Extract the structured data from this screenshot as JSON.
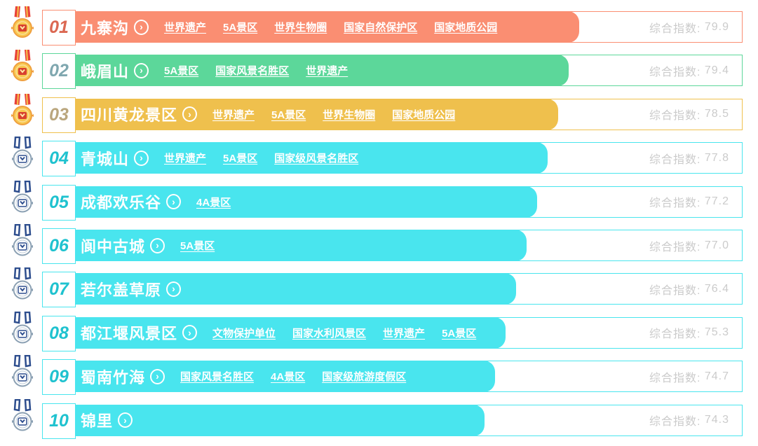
{
  "score_label": "综合指数:",
  "colors": {
    "background": "#ffffff",
    "score_text": "#cbcbcb",
    "themes": {
      "salmon": {
        "bar": "#FA8E72",
        "rank": "#DB6852"
      },
      "green": {
        "bar": "#5CD79A",
        "rank": "#7FA7AF"
      },
      "yellow": {
        "bar": "#EFC04D",
        "rank": "#BAA67D"
      },
      "cyan": {
        "bar": "#49E5EE",
        "rank": "#1FC2CF"
      }
    },
    "medal_gold": {
      "ribbon": "#E8433A",
      "ribbon_stripe": "#F6C44C",
      "circle": "#F8C74F",
      "ring": "#EFA040",
      "inner_ring": "#FBDF9B",
      "box": "#D8402F",
      "mark": "#FFE9A8"
    },
    "medal_outline": {
      "ribbon": "#2E4E8E",
      "circle": "#FFFFFF",
      "ring": "#8BA0B3",
      "inner_ring": "#C3CFD9",
      "box": "#FFFFFF",
      "box_stroke": "#2E4E8E",
      "mark": "#2E4E8E"
    }
  },
  "rows": [
    {
      "rank": "01",
      "name": "九寨沟",
      "tags": [
        "世界遗产",
        "5A景区",
        "世界生物圈",
        "国家自然保护区",
        "国家地质公园"
      ],
      "score": "79.9",
      "theme": "salmon",
      "medal": "gold"
    },
    {
      "rank": "02",
      "name": "峨眉山",
      "tags": [
        "5A景区",
        "国家风景名胜区",
        "世界遗产"
      ],
      "score": "79.4",
      "theme": "green",
      "medal": "gold"
    },
    {
      "rank": "03",
      "name": "四川黄龙景区",
      "tags": [
        "世界遗产",
        "5A景区",
        "世界生物圈",
        "国家地质公园"
      ],
      "score": "78.5",
      "theme": "yellow",
      "medal": "gold"
    },
    {
      "rank": "04",
      "name": "青城山",
      "tags": [
        "世界遗产",
        "5A景区",
        "国家级风景名胜区"
      ],
      "score": "77.8",
      "theme": "cyan",
      "medal": "outline"
    },
    {
      "rank": "05",
      "name": "成都欢乐谷",
      "tags": [
        "4A景区"
      ],
      "score": "77.2",
      "theme": "cyan",
      "medal": "outline"
    },
    {
      "rank": "06",
      "name": "阆中古城",
      "tags": [
        "5A景区"
      ],
      "score": "77.0",
      "theme": "cyan",
      "medal": "outline"
    },
    {
      "rank": "07",
      "name": "若尔盖草原",
      "tags": [],
      "score": "76.4",
      "theme": "cyan",
      "medal": "outline"
    },
    {
      "rank": "08",
      "name": "都江堰风景区",
      "tags": [
        "文物保护单位",
        "国家水利风景区",
        "世界遗产",
        "5A景区"
      ],
      "score": "75.3",
      "theme": "cyan",
      "medal": "outline"
    },
    {
      "rank": "09",
      "name": "蜀南竹海",
      "tags": [
        "国家风景名胜区",
        "4A景区",
        "国家级旅游度假区"
      ],
      "score": "74.7",
      "theme": "cyan",
      "medal": "outline"
    },
    {
      "rank": "10",
      "name": "锦里",
      "tags": [],
      "score": "74.3",
      "theme": "cyan",
      "medal": "outline"
    }
  ],
  "chart_data": {
    "type": "bar",
    "orientation": "horizontal",
    "title": "",
    "value_label": "综合指数",
    "categories": [
      "九寨沟",
      "峨眉山",
      "四川黄龙景区",
      "青城山",
      "成都欢乐谷",
      "阆中古城",
      "若尔盖草原",
      "都江堰风景区",
      "蜀南竹海",
      "锦里"
    ],
    "values": [
      79.9,
      79.4,
      78.5,
      77.8,
      77.2,
      77.0,
      76.4,
      75.3,
      74.7,
      74.3
    ],
    "ranks": [
      "01",
      "02",
      "03",
      "04",
      "05",
      "06",
      "07",
      "08",
      "09",
      "10"
    ],
    "legend": false,
    "grid": false,
    "layout_hint": "ranking list, bar length decreases ~15px per rank step"
  }
}
